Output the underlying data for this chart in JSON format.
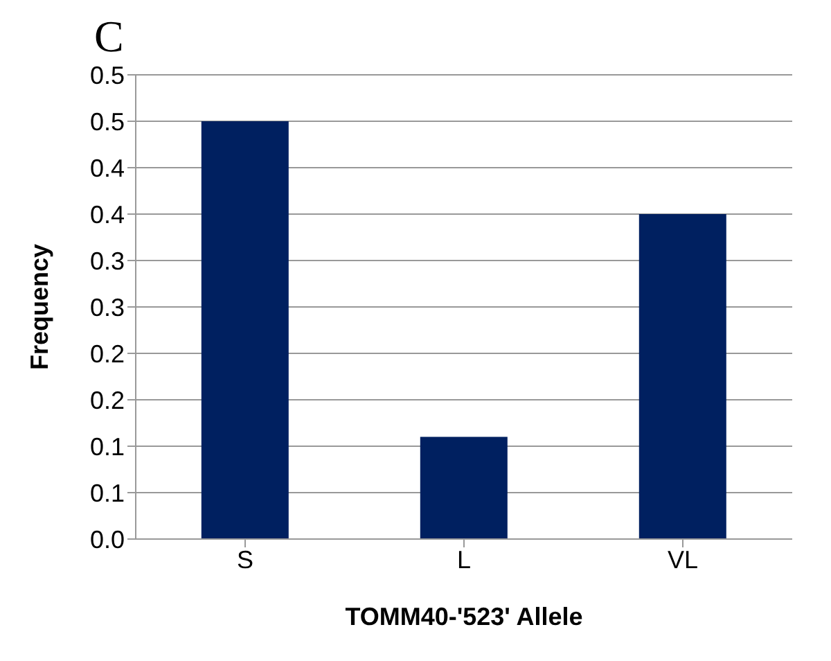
{
  "chart_data": {
    "type": "bar",
    "title": "C",
    "xlabel": "TOMM40-'523' Allele",
    "ylabel": "Frequency",
    "categories": [
      "S",
      "L",
      "VL"
    ],
    "values": [
      0.45,
      0.11,
      0.35
    ],
    "color": "#002060",
    "ylim": [
      0,
      0.5
    ],
    "yticks": [
      {
        "value": 0,
        "label": "0.0"
      },
      {
        "value": 0.05,
        "label": "0.1"
      },
      {
        "value": 0.1,
        "label": "0.1"
      },
      {
        "value": 0.15,
        "label": "0.2"
      },
      {
        "value": 0.2,
        "label": "0.2"
      },
      {
        "value": 0.25,
        "label": "0.3"
      },
      {
        "value": 0.3,
        "label": "0.3"
      },
      {
        "value": 0.35,
        "label": "0.4"
      },
      {
        "value": 0.4,
        "label": "0.4"
      },
      {
        "value": 0.45,
        "label": "0.5"
      },
      {
        "value": 0.5,
        "label": "0.5"
      }
    ],
    "grid": "y",
    "legend": false
  }
}
